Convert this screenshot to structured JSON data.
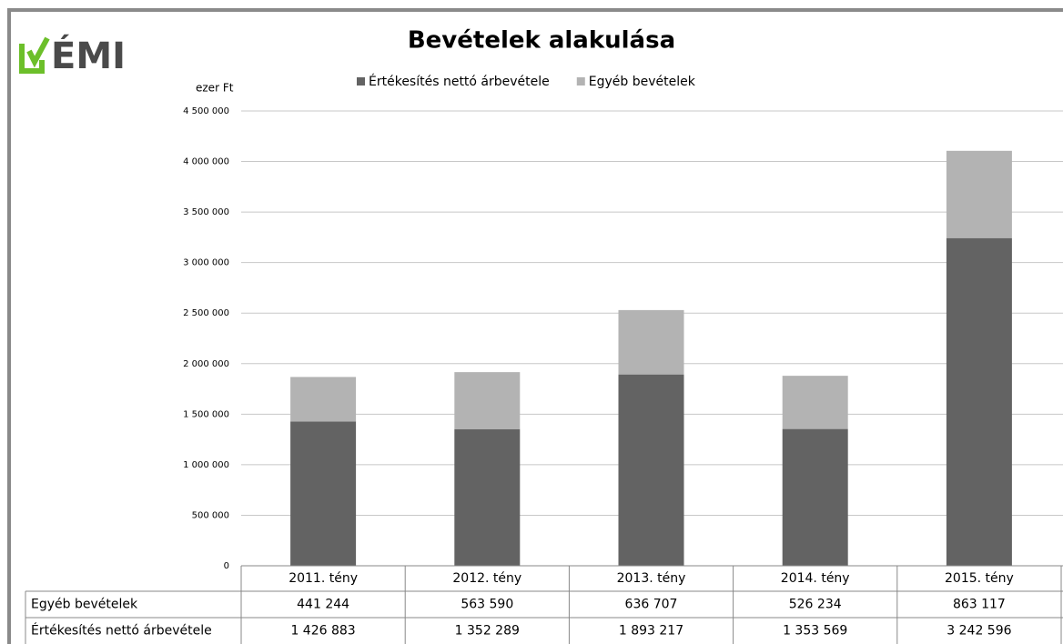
{
  "chart_data": {
    "type": "stacked_bar",
    "title": "Bevételek alakulása",
    "logo": "ÉMI",
    "y_label": "ezer Ft",
    "categories": [
      "2011. tény",
      "2012. tény",
      "2013. tény",
      "2014. tény",
      "2015. tény"
    ],
    "series": [
      {
        "name": "Értékesítés nettó árbevétele",
        "color": "#636363",
        "values": [
          1426883,
          1352289,
          1893217,
          1353569,
          3242596
        ],
        "value_labels": [
          "1 426 883",
          "1 352 289",
          "1 893 217",
          "1 353 569",
          "3 242 596"
        ]
      },
      {
        "name": "Egyéb bevételek",
        "color": "#b3b3b3",
        "values": [
          441244,
          563590,
          636707,
          526234,
          863117
        ],
        "value_labels": [
          "441 244",
          "563 590",
          "636 707",
          "526 234",
          "863 117"
        ]
      }
    ],
    "table_row_order": [
      1,
      0
    ],
    "ylim": [
      0,
      4500000
    ],
    "yticks": [
      0,
      {
        "value": 500000,
        "label": "500 000"
      },
      {
        "value": 1000000,
        "label": "1 000 000"
      },
      {
        "value": 1500000,
        "label": "1 500 000"
      },
      {
        "value": 2000000,
        "label": "2 000 000"
      },
      {
        "value": 2500000,
        "label": "2 500 000"
      },
      {
        "value": 3000000,
        "label": "3 000 000"
      },
      {
        "value": 3500000,
        "label": "3 500 000"
      },
      {
        "value": 4000000,
        "label": "4 000 000"
      },
      {
        "value": 4500000,
        "label": "4 500 000"
      }
    ],
    "grid": true,
    "legend": "top"
  }
}
